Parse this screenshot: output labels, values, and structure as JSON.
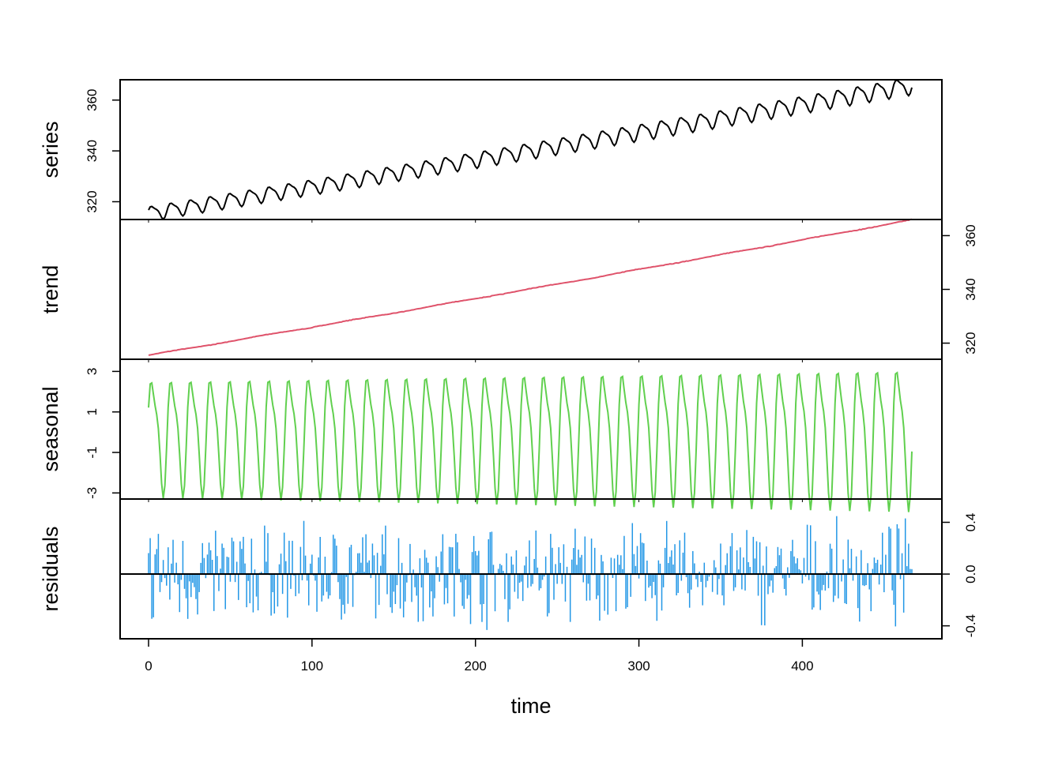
{
  "chart_data": {
    "type": "line",
    "layout": "stacked-panels",
    "xlabel": "time",
    "xlim": [
      0,
      468
    ],
    "x_ticks": [
      0,
      100,
      200,
      300,
      400
    ],
    "n_points": 468,
    "period": 12,
    "panels": [
      {
        "name": "series",
        "ylabel": "series",
        "color": "#000000",
        "axis_side": "left",
        "ylim": [
          313,
          368
        ],
        "y_ticks": [
          320,
          340,
          360
        ],
        "trend_start": 315.5,
        "trend_end": 366.0,
        "trend_curvature": 9.3e-06,
        "season_amp_start": 2.8,
        "season_amp_end": 3.4
      },
      {
        "name": "trend",
        "ylabel": "trend",
        "color": "#DF536B",
        "axis_side": "right",
        "ylim": [
          314,
          366
        ],
        "y_ticks": [
          320,
          340,
          360
        ],
        "start": 315.5,
        "end": 366.0,
        "curvature": 9.3e-06
      },
      {
        "name": "seasonal",
        "ylabel": "seasonal",
        "color": "#61D04F",
        "axis_side": "left",
        "ylim": [
          -3.3,
          3.6
        ],
        "y_ticks": [
          -3,
          -1,
          1,
          3
        ],
        "amp_start": 2.8,
        "amp_end": 3.4
      },
      {
        "name": "residuals",
        "ylabel": "residuals",
        "color": "#2297E6",
        "axis_side": "right",
        "style": "hist",
        "baseline": 0,
        "ylim": [
          -0.5,
          0.58
        ],
        "y_ticks": [
          -0.4,
          0.0,
          0.4
        ],
        "y_tick_labels": [
          "-0.4",
          "0.0",
          "0.4"
        ]
      }
    ]
  }
}
